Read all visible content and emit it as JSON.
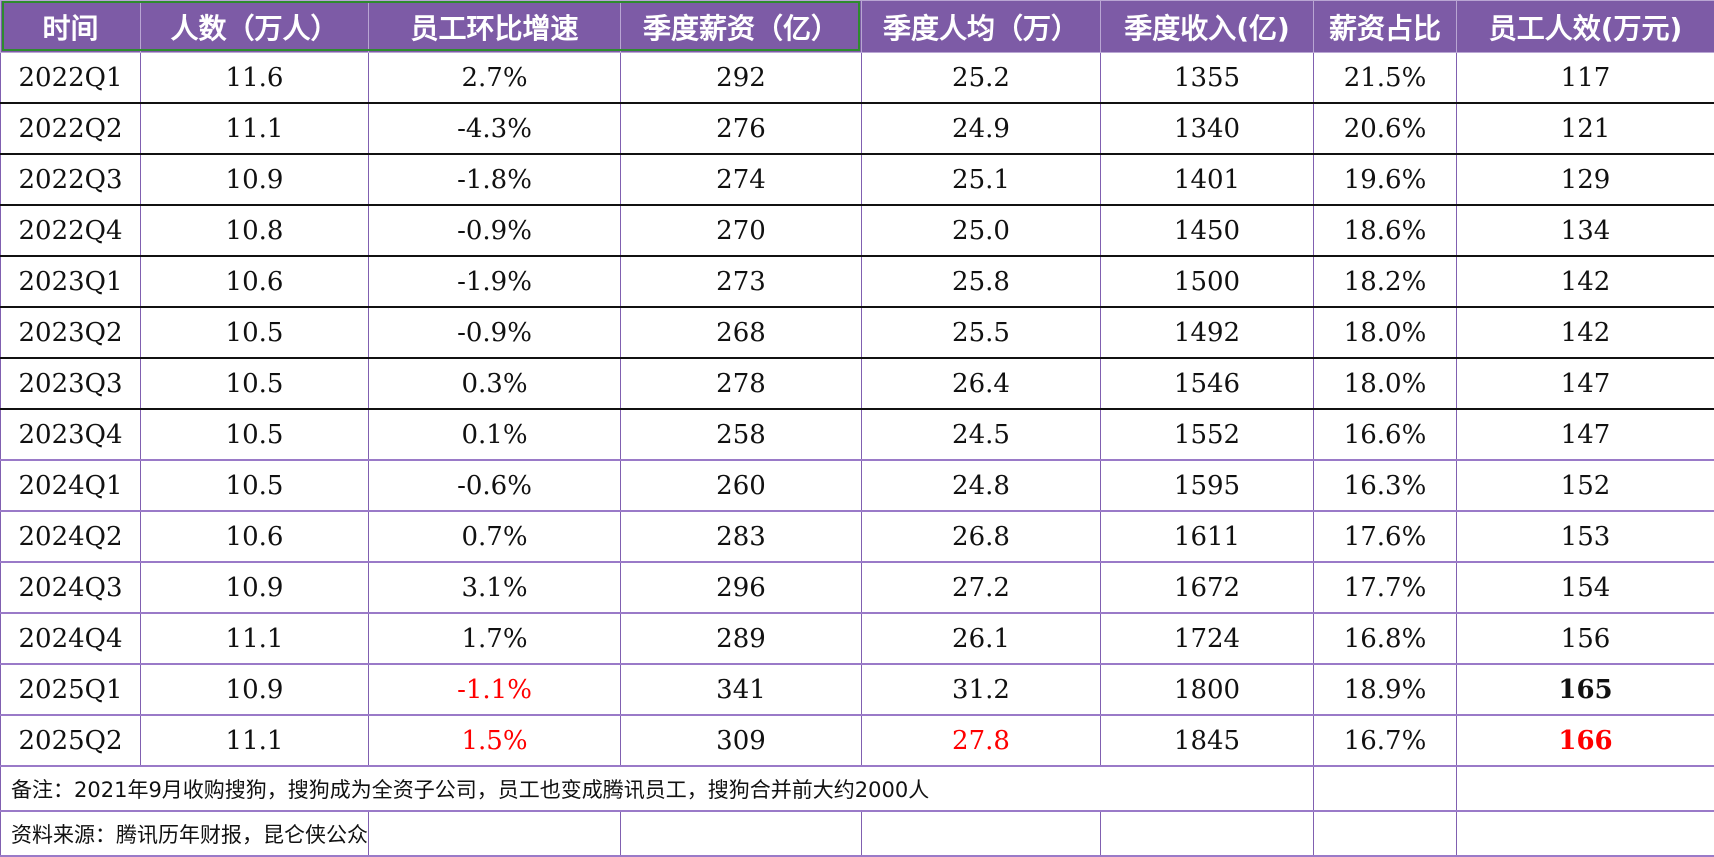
{
  "table": {
    "headers": [
      "时间",
      "人数（万人）",
      "员工环比增速",
      "季度薪资（亿）",
      "季度人均（万）",
      "季度收入(亿)",
      "薪资占比",
      "员工人效(万元)"
    ],
    "rows": [
      [
        "2022Q1",
        "11.6",
        "2.7%",
        "292",
        "25.2",
        "1355",
        "21.5%",
        "117"
      ],
      [
        "2022Q2",
        "11.1",
        "-4.3%",
        "276",
        "24.9",
        "1340",
        "20.6%",
        "121"
      ],
      [
        "2022Q3",
        "10.9",
        "-1.8%",
        "274",
        "25.1",
        "1401",
        "19.6%",
        "129"
      ],
      [
        "2022Q4",
        "10.8",
        "-0.9%",
        "270",
        "25.0",
        "1450",
        "18.6%",
        "134"
      ],
      [
        "2023Q1",
        "10.6",
        "-1.9%",
        "273",
        "25.8",
        "1500",
        "18.2%",
        "142"
      ],
      [
        "2023Q2",
        "10.5",
        "-0.9%",
        "268",
        "25.5",
        "1492",
        "18.0%",
        "142"
      ],
      [
        "2023Q3",
        "10.5",
        "0.3%",
        "278",
        "26.4",
        "1546",
        "18.0%",
        "147"
      ],
      [
        "2023Q4",
        "10.5",
        "0.1%",
        "258",
        "24.5",
        "1552",
        "16.6%",
        "147"
      ],
      [
        "2024Q1",
        "10.5",
        "-0.6%",
        "260",
        "24.8",
        "1595",
        "16.3%",
        "152"
      ],
      [
        "2024Q2",
        "10.6",
        "0.7%",
        "283",
        "26.8",
        "1611",
        "17.6%",
        "153"
      ],
      [
        "2024Q3",
        "10.9",
        "3.1%",
        "296",
        "27.2",
        "1672",
        "17.7%",
        "154"
      ],
      [
        "2024Q4",
        "11.1",
        "1.7%",
        "289",
        "26.1",
        "1724",
        "16.8%",
        "156"
      ],
      [
        "2025Q1",
        "10.9",
        "-1.1%",
        "341",
        "31.2",
        "1800",
        "18.9%",
        "165"
      ],
      [
        "2025Q2",
        "11.1",
        "1.5%",
        "309",
        "27.8",
        "1845",
        "16.7%",
        "166"
      ]
    ],
    "note": "备注：2021年9月收购搜狗，搜狗成为全资子公司，员工也变成腾讯员工，搜狗合并前大约2000人",
    "source": "资料来源：腾讯历年财报，昆仑侠公众号"
  },
  "colors": {
    "header_bg": "#7d5ba6",
    "header_text": "#ffffff",
    "highlight_red": "#ff0000",
    "selection_border": "#2e8b2e"
  }
}
